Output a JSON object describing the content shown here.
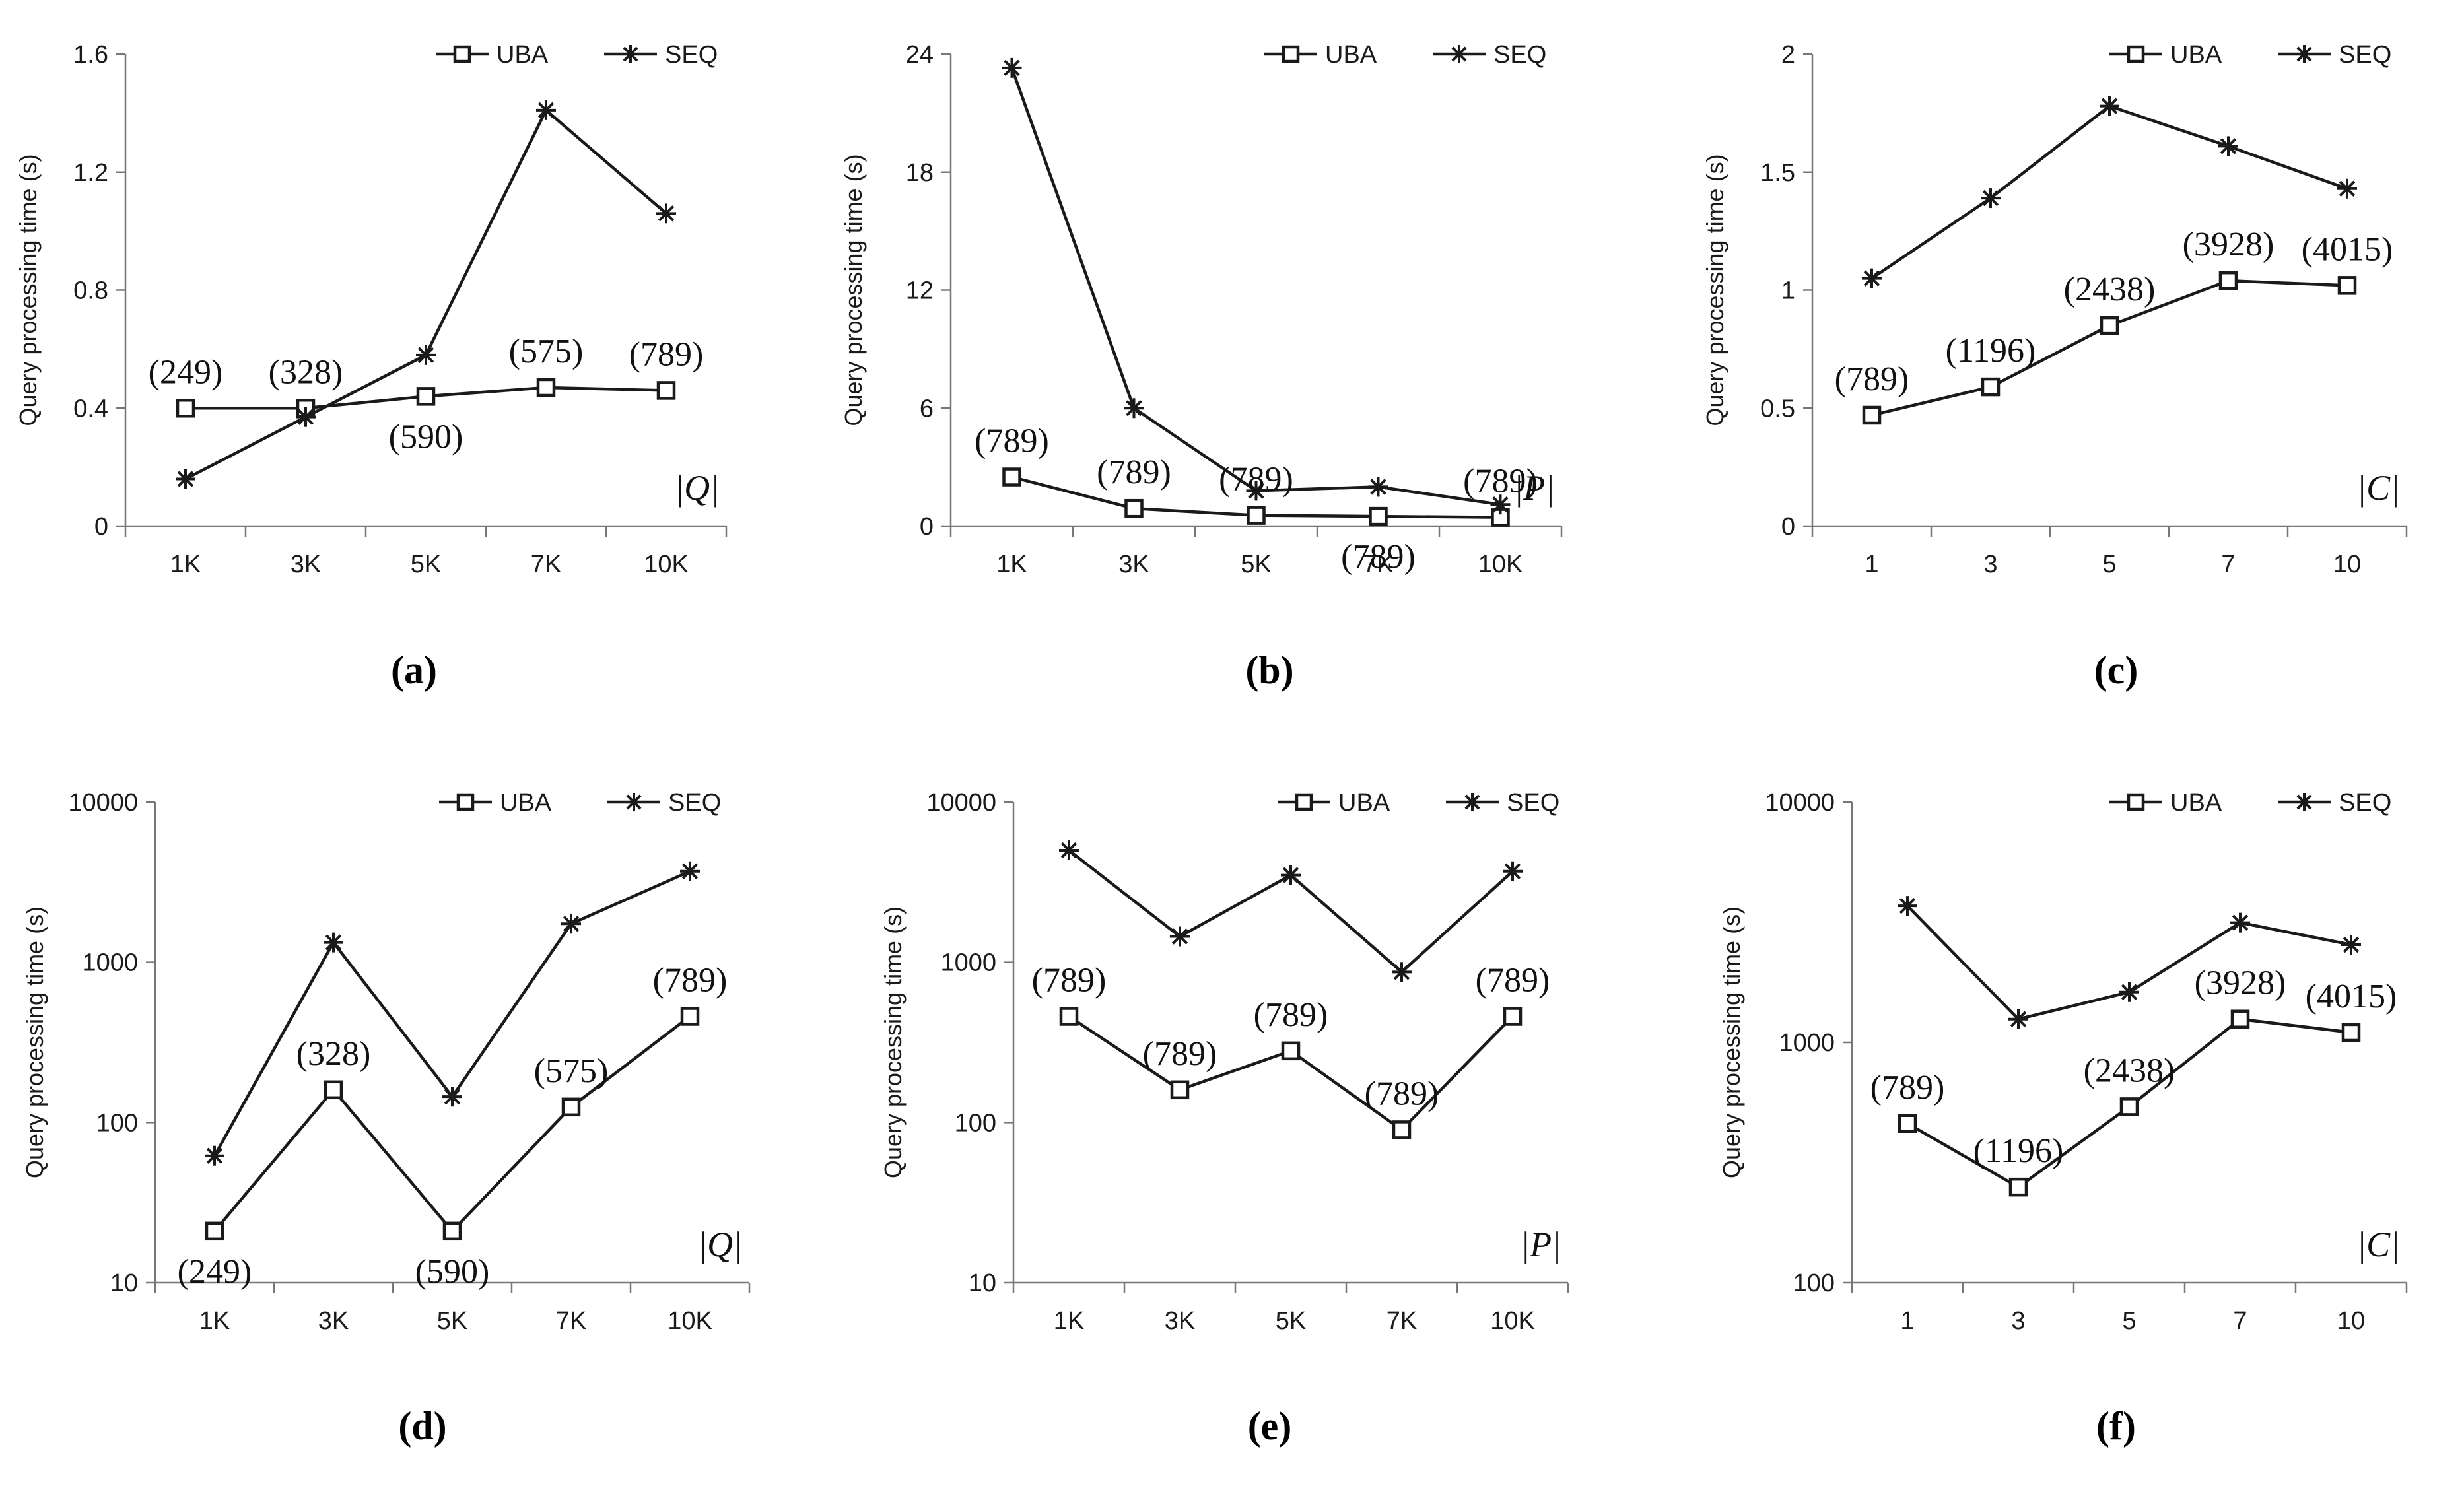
{
  "chart_data": [
    {
      "panel": "(a)",
      "type": "line",
      "scale": "linear",
      "ylabel": "Query processing time (s)",
      "xvar": "|Q|",
      "categories": [
        "1K",
        "3K",
        "5K",
        "7K",
        "10K"
      ],
      "yticks": [
        0,
        0.4,
        0.8,
        1.2,
        1.6
      ],
      "ytick_labels": [
        "0",
        "0.4",
        "0.8",
        "1.2",
        "1.6"
      ],
      "ylim": [
        0,
        1.6
      ],
      "series": [
        {
          "name": "UBA",
          "marker": "square",
          "values": [
            0.4,
            0.4,
            0.44,
            0.47,
            0.46
          ]
        },
        {
          "name": "SEQ",
          "marker": "star",
          "values": [
            0.16,
            0.37,
            0.58,
            1.41,
            1.06
          ]
        }
      ],
      "annotations": [
        {
          "text": "(249)",
          "i": 0,
          "pos": "above"
        },
        {
          "text": "(328)",
          "i": 1,
          "pos": "above"
        },
        {
          "text": "(590)",
          "i": 2,
          "pos": "below"
        },
        {
          "text": "(575)",
          "i": 3,
          "pos": "above"
        },
        {
          "text": "(789)",
          "i": 4,
          "pos": "above"
        }
      ]
    },
    {
      "panel": "(b)",
      "type": "line",
      "scale": "linear",
      "ylabel": "Query processing time (s)",
      "xvar": "|P|",
      "categories": [
        "1K",
        "3K",
        "5K",
        "7K",
        "10K"
      ],
      "yticks": [
        0,
        6,
        12,
        18,
        24
      ],
      "ytick_labels": [
        "0",
        "6",
        "12",
        "18",
        "24"
      ],
      "ylim": [
        0,
        24
      ],
      "series": [
        {
          "name": "UBA",
          "marker": "square",
          "values": [
            2.5,
            0.9,
            0.55,
            0.5,
            0.45
          ]
        },
        {
          "name": "SEQ",
          "marker": "star",
          "values": [
            23.3,
            6.0,
            1.8,
            2.0,
            1.1
          ]
        }
      ],
      "annotations": [
        {
          "text": "(789)",
          "i": 0,
          "pos": "above"
        },
        {
          "text": "(789)",
          "i": 1,
          "pos": "above"
        },
        {
          "text": "(789)",
          "i": 2,
          "pos": "above"
        },
        {
          "text": "(789)",
          "i": 3,
          "pos": "below"
        },
        {
          "text": "(789)",
          "i": 4,
          "pos": "above"
        }
      ]
    },
    {
      "panel": "(c)",
      "type": "line",
      "scale": "linear",
      "ylabel": "Query processing time (s)",
      "xvar": "|C|",
      "categories": [
        "1",
        "3",
        "5",
        "7",
        "10"
      ],
      "yticks": [
        0,
        0.5,
        1,
        1.5,
        2
      ],
      "ytick_labels": [
        "0",
        "0.5",
        "1",
        "1.5",
        "2"
      ],
      "ylim": [
        0,
        2
      ],
      "series": [
        {
          "name": "UBA",
          "marker": "square",
          "values": [
            0.47,
            0.59,
            0.85,
            1.04,
            1.02
          ]
        },
        {
          "name": "SEQ",
          "marker": "star",
          "values": [
            1.05,
            1.39,
            1.78,
            1.61,
            1.43
          ]
        }
      ],
      "annotations": [
        {
          "text": "(789)",
          "i": 0,
          "pos": "above"
        },
        {
          "text": "(1196)",
          "i": 1,
          "pos": "above"
        },
        {
          "text": "(2438)",
          "i": 2,
          "pos": "above"
        },
        {
          "text": "(3928)",
          "i": 3,
          "pos": "above"
        },
        {
          "text": "(4015)",
          "i": 4,
          "pos": "above"
        }
      ]
    },
    {
      "panel": "(d)",
      "type": "line",
      "scale": "log",
      "ylabel": "Query processing time (s)",
      "xvar": "|Q|",
      "categories": [
        "1K",
        "3K",
        "5K",
        "7K",
        "10K"
      ],
      "yticks": [
        10,
        100,
        1000,
        10000
      ],
      "ytick_labels": [
        "10",
        "100",
        "1000",
        "10000"
      ],
      "ylim": [
        10,
        10000
      ],
      "series": [
        {
          "name": "UBA",
          "marker": "square",
          "values": [
            21,
            160,
            21,
            125,
            460
          ]
        },
        {
          "name": "SEQ",
          "marker": "star",
          "values": [
            62,
            1330,
            145,
            1740,
            3700
          ]
        }
      ],
      "annotations": [
        {
          "text": "(249)",
          "i": 0,
          "pos": "below"
        },
        {
          "text": "(328)",
          "i": 1,
          "pos": "above"
        },
        {
          "text": "(590)",
          "i": 2,
          "pos": "below"
        },
        {
          "text": "(575)",
          "i": 3,
          "pos": "above"
        },
        {
          "text": "(789)",
          "i": 4,
          "pos": "above"
        }
      ]
    },
    {
      "panel": "(e)",
      "type": "line",
      "scale": "log",
      "ylabel": "Query processing time (s)",
      "xvar": "|P|",
      "categories": [
        "1K",
        "3K",
        "5K",
        "7K",
        "10K"
      ],
      "yticks": [
        10,
        100,
        1000,
        10000
      ],
      "ytick_labels": [
        "10",
        "100",
        "1000",
        "10000"
      ],
      "ylim": [
        10,
        10000
      ],
      "series": [
        {
          "name": "UBA",
          "marker": "square",
          "values": [
            460,
            160,
            280,
            90,
            460
          ]
        },
        {
          "name": "SEQ",
          "marker": "star",
          "values": [
            5000,
            1450,
            3500,
            870,
            3700
          ]
        }
      ],
      "annotations": [
        {
          "text": "(789)",
          "i": 0,
          "pos": "above"
        },
        {
          "text": "(789)",
          "i": 1,
          "pos": "above"
        },
        {
          "text": "(789)",
          "i": 2,
          "pos": "above"
        },
        {
          "text": "(789)",
          "i": 3,
          "pos": "above"
        },
        {
          "text": "(789)",
          "i": 4,
          "pos": "above"
        }
      ]
    },
    {
      "panel": "(f)",
      "type": "line",
      "scale": "log",
      "ylabel": "Query processing time (s)",
      "xvar": "|C|",
      "categories": [
        "1",
        "3",
        "5",
        "7",
        "10"
      ],
      "yticks": [
        100,
        1000,
        10000
      ],
      "ytick_labels": [
        "100",
        "1000",
        "10000"
      ],
      "ylim": [
        100,
        10000
      ],
      "series": [
        {
          "name": "UBA",
          "marker": "square",
          "values": [
            460,
            250,
            540,
            1250,
            1100
          ]
        },
        {
          "name": "SEQ",
          "marker": "star",
          "values": [
            3700,
            1250,
            1620,
            3150,
            2550
          ]
        }
      ],
      "annotations": [
        {
          "text": "(789)",
          "i": 0,
          "pos": "above"
        },
        {
          "text": "(1196)",
          "i": 1,
          "pos": "above"
        },
        {
          "text": "(2438)",
          "i": 2,
          "pos": "above"
        },
        {
          "text": "(3928)",
          "i": 3,
          "pos": "above"
        },
        {
          "text": "(4015)",
          "i": 4,
          "pos": "above"
        }
      ]
    }
  ]
}
